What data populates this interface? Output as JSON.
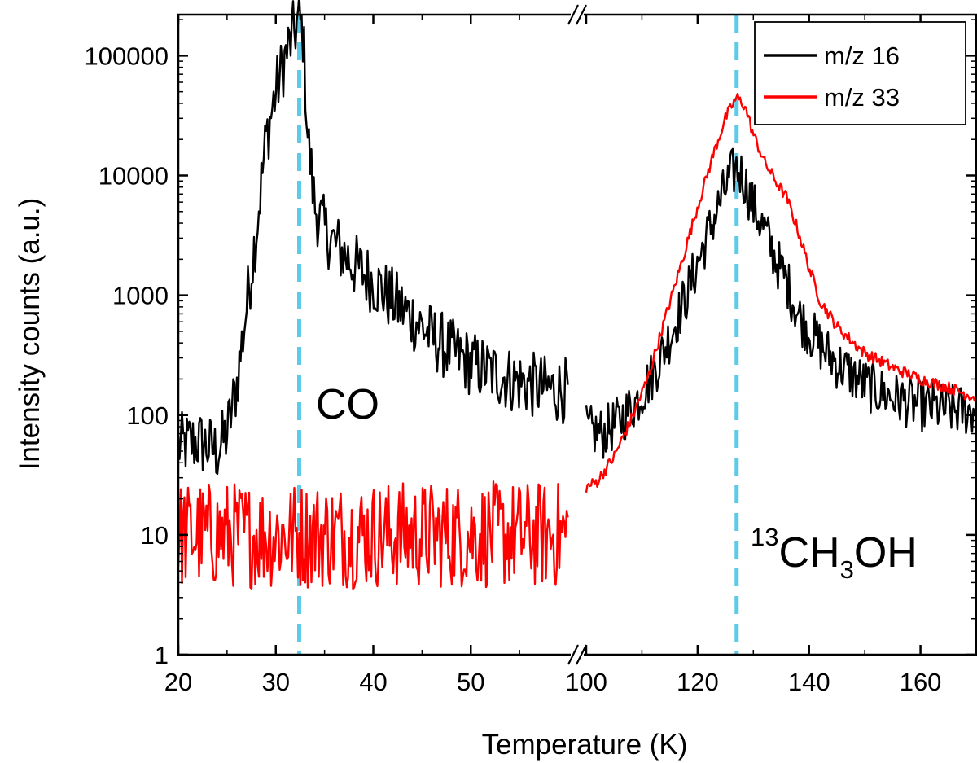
{
  "chart_data": {
    "type": "line",
    "xlabel": "Temperature (K)",
    "ylabel": "Intensity counts (a.u.)",
    "y_scale": "log",
    "ylim": [
      1,
      220000
    ],
    "x_segments": [
      {
        "xlim": [
          20,
          60
        ],
        "ticks": [
          20,
          30,
          40,
          50
        ]
      },
      {
        "xlim": [
          100,
          170
        ],
        "ticks": [
          100,
          120,
          140,
          160
        ]
      }
    ],
    "y_ticks": [
      1,
      10,
      100,
      1000,
      10000,
      100000
    ],
    "y_tick_labels": [
      "1",
      "10",
      "100",
      "1000",
      "10000",
      "100000"
    ],
    "x_tick_labels": [
      "20",
      "30",
      "40",
      "50",
      "100",
      "120",
      "140",
      "160"
    ],
    "legend": {
      "position": "top-right",
      "entries": [
        "m/z 16",
        "m/z 33"
      ]
    },
    "series": [
      {
        "name": "m/z 16",
        "color": "#000000",
        "segments": [
          {
            "points": [
              [
                20,
                55
              ],
              [
                22,
                60
              ],
              [
                24,
                50
              ],
              [
                25,
                70
              ],
              [
                26,
                180
              ],
              [
                27,
                800
              ],
              [
                28,
                3500
              ],
              [
                29,
                20000
              ],
              [
                30,
                50000
              ],
              [
                31,
                100000
              ],
              [
                32,
                170000
              ],
              [
                32.4,
                200000
              ],
              [
                32.8,
                150000
              ],
              [
                33.3,
                20000
              ],
              [
                34,
                5500
              ],
              [
                35,
                3500
              ],
              [
                36,
                2700
              ],
              [
                38,
                1800
              ],
              [
                40,
                1300
              ],
              [
                42,
                900
              ],
              [
                44,
                650
              ],
              [
                46,
                450
              ],
              [
                48,
                340
              ],
              [
                50,
                270
              ],
              [
                52,
                230
              ],
              [
                54,
                200
              ],
              [
                56,
                180
              ],
              [
                58,
                165
              ],
              [
                60,
                160
              ]
            ],
            "noise": 0.28
          },
          {
            "points": [
              [
                100,
                75
              ],
              [
                103,
                70
              ],
              [
                106,
                90
              ],
              [
                109,
                130
              ],
              [
                112,
                220
              ],
              [
                115,
                450
              ],
              [
                118,
                1000
              ],
              [
                121,
                2500
              ],
              [
                124,
                6000
              ],
              [
                126,
                10000
              ],
              [
                127,
                11500
              ],
              [
                128,
                10000
              ],
              [
                130,
                5500
              ],
              [
                132,
                3500
              ],
              [
                134,
                2000
              ],
              [
                136,
                1300
              ],
              [
                138,
                700
              ],
              [
                140,
                500
              ],
              [
                142,
                380
              ],
              [
                145,
                270
              ],
              [
                150,
                180
              ],
              [
                155,
                140
              ],
              [
                160,
                120
              ],
              [
                165,
                110
              ],
              [
                170,
                110
              ]
            ],
            "noise": 0.22
          }
        ]
      },
      {
        "name": "m/z 33",
        "color": "#ff0000",
        "segments": [
          {
            "points": [
              [
                20,
                10
              ],
              [
                60,
                10
              ]
            ],
            "noise": 0.45
          },
          {
            "points": [
              [
                100,
                25
              ],
              [
                102,
                28
              ],
              [
                105,
                45
              ],
              [
                108,
                90
              ],
              [
                111,
                200
              ],
              [
                114,
                600
              ],
              [
                117,
                1800
              ],
              [
                120,
                5500
              ],
              [
                123,
                16000
              ],
              [
                125,
                30000
              ],
              [
                127,
                45000
              ],
              [
                128.5,
                38000
              ],
              [
                130,
                22000
              ],
              [
                132,
                13000
              ],
              [
                134,
                9000
              ],
              [
                136,
                6500
              ],
              [
                138,
                3500
              ],
              [
                140,
                1700
              ],
              [
                142,
                900
              ],
              [
                145,
                550
              ],
              [
                148,
                400
              ],
              [
                150,
                330
              ],
              [
                155,
                250
              ],
              [
                160,
                200
              ],
              [
                165,
                170
              ],
              [
                170,
                140
              ]
            ],
            "noise": 0.05
          }
        ]
      }
    ],
    "reference_lines": [
      {
        "x": 32.4,
        "label": "CO",
        "color": "#5ccbe8"
      },
      {
        "x": 127,
        "label": "CH",
        "sup": "13",
        "sub": "3",
        "suffix": "OH",
        "color": "#5ccbe8"
      }
    ]
  }
}
